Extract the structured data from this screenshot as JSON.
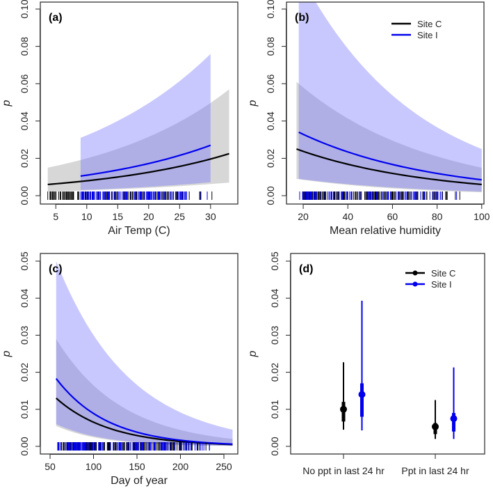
{
  "colors": {
    "siteC": "#000000",
    "siteI": "#0000ee",
    "bandC": "rgba(150,150,150,0.38)",
    "bandI": "rgba(110,110,255,0.38)"
  },
  "chart_data": [
    {
      "panel": "(a)",
      "type": "line",
      "xlabel": "Air Temp (C)",
      "ylabel": "p",
      "xlim": [
        2.5,
        34.4
      ],
      "ylim": [
        0,
        0.1
      ],
      "xticks": [
        5,
        10,
        15,
        20,
        25,
        30
      ],
      "yticks": [
        0,
        0.02,
        0.04,
        0.06,
        0.08,
        0.1
      ],
      "ytick_labels": [
        "0.00",
        "0.02",
        "0.04",
        "0.06",
        "0.08",
        "0.10"
      ],
      "series": [
        {
          "name": "Site C",
          "x": [
            3.7,
            33
          ],
          "fit": [
            0.006,
            0.0225
          ],
          "lower": [
            0.0022,
            0.007
          ],
          "upper": [
            0.015,
            0.057
          ]
        },
        {
          "name": "Site I",
          "x": [
            9,
            30
          ],
          "fit": [
            0.0105,
            0.027
          ],
          "lower": [
            0.003,
            0.0072
          ],
          "upper": [
            0.031,
            0.076
          ]
        }
      ],
      "rug": {
        "siteC_range": [
          3.7,
          32.5
        ],
        "siteI_range": [
          9,
          30
        ],
        "siteC_n": 120,
        "siteI_n": 110
      },
      "legend": null
    },
    {
      "panel": "(b)",
      "type": "line",
      "xlabel": "Mean relative humidity",
      "ylabel": "p",
      "xlim": [
        12.5,
        101
      ],
      "ylim": [
        0,
        0.1
      ],
      "xticks": [
        20,
        40,
        60,
        80,
        100
      ],
      "yticks": [
        0,
        0.02,
        0.04,
        0.06,
        0.08,
        0.1
      ],
      "ytick_labels": [
        "0.00",
        "0.02",
        "0.04",
        "0.06",
        "0.08",
        "0.10"
      ],
      "series": [
        {
          "name": "Site C",
          "x": [
            17,
            100
          ],
          "fit": [
            0.025,
            0.006
          ],
          "lower": [
            0.009,
            0.0018
          ],
          "upper": [
            0.061,
            0.015
          ]
        },
        {
          "name": "Site I",
          "x": [
            18,
            100
          ],
          "fit": [
            0.034,
            0.0085
          ],
          "lower": [
            0.009,
            0.0022
          ],
          "upper": [
            0.12,
            0.025
          ]
        }
      ],
      "rug": {
        "siteC_range": [
          17,
          100
        ],
        "siteI_range": [
          18,
          100
        ],
        "siteC_n": 140,
        "siteI_n": 100
      },
      "legend": {
        "position": "top-right",
        "entries": [
          "Site C",
          "Site I"
        ]
      }
    },
    {
      "panel": "(c)",
      "type": "line",
      "xlabel": "Day of year",
      "ylabel": "p",
      "xlim": [
        38.8,
        266
      ],
      "ylim": [
        0,
        0.05
      ],
      "xticks": [
        50,
        100,
        150,
        200,
        250
      ],
      "yticks": [
        0,
        0.01,
        0.02,
        0.03,
        0.04,
        0.05
      ],
      "ytick_labels": [
        "0.00",
        "0.01",
        "0.02",
        "0.03",
        "0.04",
        "0.05"
      ],
      "series": [
        {
          "name": "Site C",
          "x": [
            57,
            260
          ],
          "fit": [
            0.013,
            0.0005
          ],
          "lower": [
            0.0055,
            0.00012
          ],
          "upper": [
            0.029,
            0.002
          ]
        },
        {
          "name": "Site I",
          "x": [
            57,
            260
          ],
          "fit": [
            0.0183,
            0.0006
          ],
          "lower": [
            0.006,
            0.00015
          ],
          "upper": [
            0.05,
            0.0045
          ]
        }
      ],
      "rug": {
        "siteC_range": [
          57,
          260
        ],
        "siteI_range": [
          57,
          260
        ],
        "siteC_n": 160,
        "siteI_n": 140
      },
      "legend": null
    },
    {
      "panel": "(d)",
      "type": "errorbar",
      "xlabel": "",
      "ylabel": "p",
      "ylim": [
        0,
        0.05
      ],
      "categories": [
        "No ppt in last 24 hr",
        "Ppt in last 24 hr"
      ],
      "yticks": [
        0,
        0.01,
        0.02,
        0.03,
        0.04,
        0.05
      ],
      "ytick_labels": [
        "0.00",
        "0.01",
        "0.02",
        "0.03",
        "0.04",
        "0.05"
      ],
      "series": [
        {
          "name": "Site C",
          "point": [
            0.01,
            0.0053
          ],
          "inner_low": [
            0.0067,
            0.0033
          ],
          "inner_high": [
            0.012,
            0.0063
          ],
          "outer_low": [
            0.0045,
            0.002
          ],
          "outer_high": [
            0.0227,
            0.0125
          ]
        },
        {
          "name": "Site I",
          "point": [
            0.014,
            0.0075
          ],
          "inner_low": [
            0.008,
            0.004
          ],
          "inner_high": [
            0.017,
            0.009
          ],
          "outer_low": [
            0.0043,
            0.002
          ],
          "outer_high": [
            0.0393,
            0.0213
          ]
        }
      ],
      "legend": {
        "position": "top-right",
        "entries": [
          "Site C",
          "Site I"
        ]
      }
    }
  ]
}
